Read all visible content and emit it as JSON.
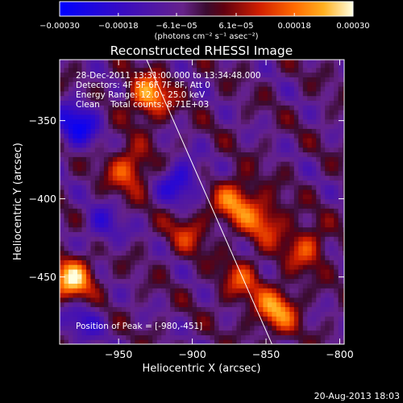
{
  "chart_data": {
    "type": "heatmap",
    "title": "Reconstructed RHESSI Image",
    "xlabel": "Heliocentric X (arcsec)",
    "ylabel": "Heliocentric Y (arcsec)",
    "xlim": [
      -990,
      -797
    ],
    "ylim": [
      -493,
      -311
    ],
    "xticks": [
      -950,
      -900,
      -850,
      -800
    ],
    "yticks": [
      -350,
      -400,
      -450
    ],
    "xtick_labels": [
      "−950",
      "−900",
      "−850",
      "−800"
    ],
    "ytick_labels": [
      "−350",
      "−400",
      "−450"
    ],
    "colorbar": {
      "ticks": [
        -0.0003,
        -0.00018,
        -6.1e-05,
        6.1e-05,
        0.00018,
        0.0003
      ],
      "tick_labels": [
        "−0.00030",
        "−0.00018",
        "−6.1e−05",
        "6.1e−05",
        "0.00018",
        "0.00030"
      ],
      "unit_label": "(photons cm⁻² s⁻¹ asec⁻²)",
      "range": [
        -0.0003,
        0.0003
      ]
    },
    "annotations": [
      "28-Dec-2011 13:31:00.000 to 13:34:48.000",
      "Detectors: 4F 5F 6F 7F 8F, Att 0",
      "Energy Range: 12.0 - 25.0 keV",
      "Clean    Total counts: 8.71E+03",
      "Position of Peak = [-980,-451]"
    ],
    "limb_line": {
      "x": [
        -931,
        -846
      ],
      "y": [
        -311,
        -493
      ]
    },
    "bright_sources": [
      {
        "x": -981,
        "y": -451,
        "value": 0.0003
      },
      {
        "x": -929,
        "y": -334,
        "value": 0.00026
      },
      {
        "x": -943,
        "y": -381,
        "value": 0.0002
      },
      {
        "x": -871,
        "y": -401,
        "value": 0.00022
      },
      {
        "x": -851,
        "y": -414,
        "value": 0.00018
      },
      {
        "x": -843,
        "y": -471,
        "value": 0.00024
      },
      {
        "x": -823,
        "y": -431,
        "value": 0.00017
      },
      {
        "x": -867,
        "y": -452,
        "value": 0.00015
      },
      {
        "x": -903,
        "y": -421,
        "value": 0.00013
      }
    ],
    "dim_regions": [
      {
        "x": -978,
        "y": -352,
        "value": -0.00022
      },
      {
        "x": -908,
        "y": -389,
        "value": -0.00018
      },
      {
        "x": -961,
        "y": -418,
        "value": -0.00012
      },
      {
        "x": -975,
        "y": -477,
        "value": -0.00012
      }
    ]
  },
  "footer": {
    "timestamp": "20-Aug-2013 18:03"
  }
}
